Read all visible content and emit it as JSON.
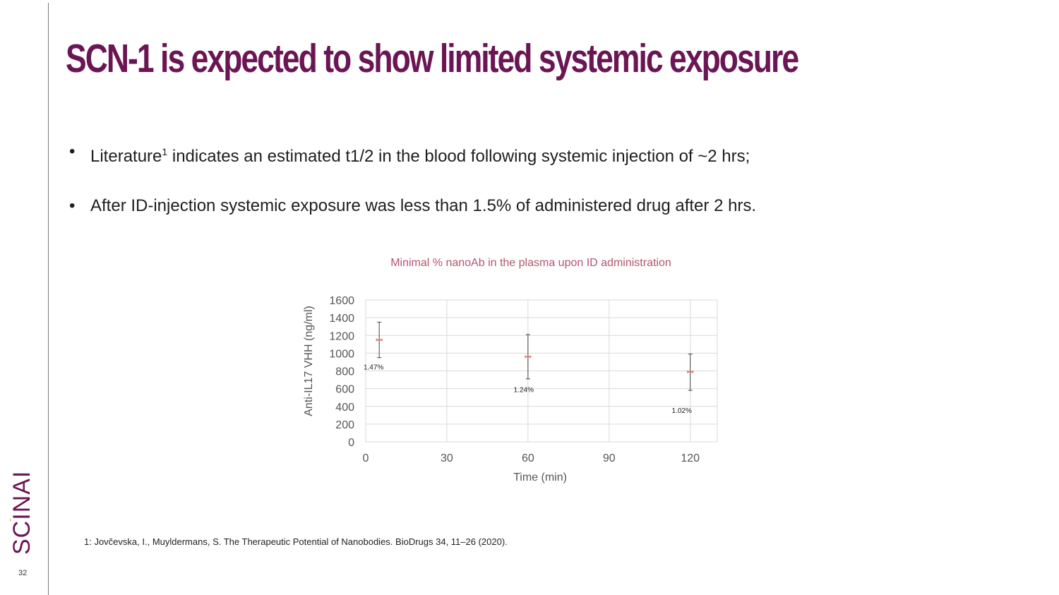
{
  "slide": {
    "title": "SCN-1 is expected to show limited systemic exposure",
    "bullets": [
      {
        "text_before": "Literature",
        "superscript": "1",
        "text_after": " indicates an estimated t1/2 in the blood following systemic injection of ~2 hrs;"
      },
      {
        "text": "After ID-injection systemic exposure was less than 1.5% of administered drug after 2 hrs."
      }
    ],
    "bullet_symbol": "•",
    "footnote": "1: Jovčevska, I., Muyldermans, S. The Therapeutic Potential of Nanobodies. BioDrugs 34, 11–26 (2020).",
    "page_number": "32",
    "logo_text": "SCINAI"
  },
  "colors": {
    "title": "#6b1654",
    "chart_title": "#b5546e",
    "marker": "#e0766a",
    "axis_text": "#555555",
    "gridline": "#d9d9d9",
    "logo": "#6b1654",
    "logo_dot": "#d8833a"
  },
  "chart_data": {
    "type": "scatter",
    "title": "Minimal % nanoAb in the plasma upon ID administration",
    "xlabel": "Time (min)",
    "ylabel": "Anti-IL17 VHH (ng/ml)",
    "xlim": [
      0,
      130
    ],
    "ylim": [
      0,
      1600
    ],
    "xticks": [
      0,
      30,
      60,
      90,
      120
    ],
    "yticks": [
      0,
      200,
      400,
      600,
      800,
      1000,
      1200,
      1400,
      1600
    ],
    "grid": true,
    "series": [
      {
        "name": "Anti-IL17 VHH",
        "points": [
          {
            "x": 5,
            "y": 1150,
            "err_low": 950,
            "err_high": 1350,
            "label": "1.47%"
          },
          {
            "x": 60,
            "y": 960,
            "err_low": 710,
            "err_high": 1210,
            "label": "1.24%"
          },
          {
            "x": 120,
            "y": 790,
            "err_low": 580,
            "err_high": 990,
            "label": "1.02%"
          }
        ]
      }
    ]
  }
}
